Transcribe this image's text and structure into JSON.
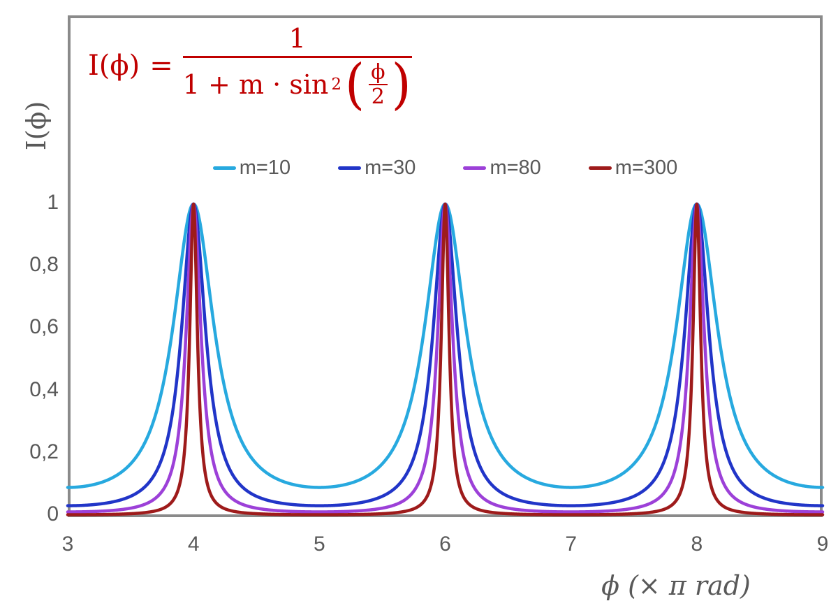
{
  "colors": {
    "background": "#FFFFFF",
    "frame": "#8A8A8A",
    "axis_text": "#595959",
    "formula": "#C00000"
  },
  "formula_display": {
    "lhs": "I(ϕ)",
    "equals": "=",
    "numerator": "1",
    "denominator_prefix": "1 + m · sin",
    "exponent": "2",
    "paren_open": "(",
    "paren_close": ")",
    "inner_numerator": "ϕ",
    "inner_denominator": "2"
  },
  "chart_data": {
    "type": "line",
    "formula": "I(ϕ) = 1 / (1 + m·sin²(ϕ/2))",
    "xlabel": "ϕ  (× π rad)",
    "ylabel": "I(ϕ)",
    "x_unit": "π rad",
    "xlim": [
      3,
      9
    ],
    "ylim": [
      0,
      1
    ],
    "xticks": [
      "3",
      "4",
      "5",
      "6",
      "7",
      "8",
      "9"
    ],
    "yticks": [
      {
        "value": 0,
        "label": "0"
      },
      {
        "value": 0.2,
        "label": "0,2"
      },
      {
        "value": 0.4,
        "label": "0,4"
      },
      {
        "value": 0.6,
        "label": "0,6"
      },
      {
        "value": 0.8,
        "label": "0,8"
      },
      {
        "value": 1,
        "label": "1"
      }
    ],
    "grid": false,
    "legend_position": "top-center",
    "peaks_at_x": [
      4,
      6,
      8
    ],
    "peak_value": 1,
    "series": [
      {
        "name": "m=10",
        "m": 10,
        "color": "#27A9DF",
        "min_value": 0.0909
      },
      {
        "name": "m=30",
        "m": 30,
        "color": "#2135C8",
        "min_value": 0.0323
      },
      {
        "name": "m=80",
        "m": 80,
        "color": "#9C40D8",
        "min_value": 0.0123
      },
      {
        "name": "m=300",
        "m": 300,
        "color": "#9E1B1B",
        "min_value": 0.0033
      }
    ]
  }
}
